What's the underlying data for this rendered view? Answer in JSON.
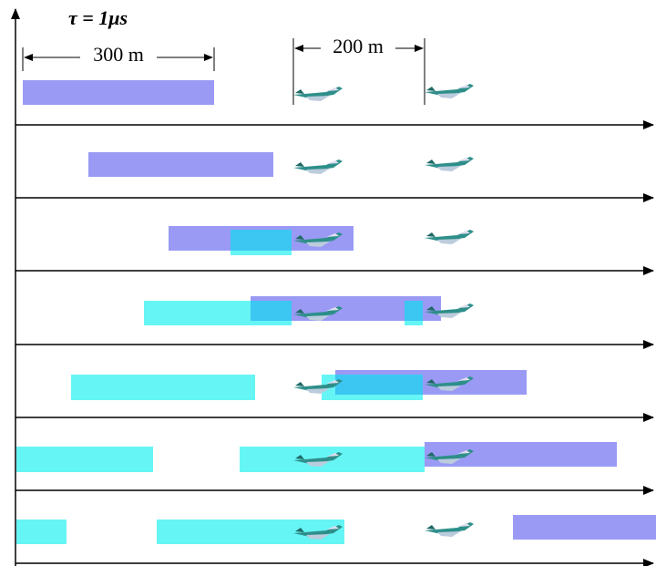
{
  "annotations": {
    "pulse": "τ = 1μs",
    "pulse_length": "300 m",
    "separation": "200 m"
  }
}
